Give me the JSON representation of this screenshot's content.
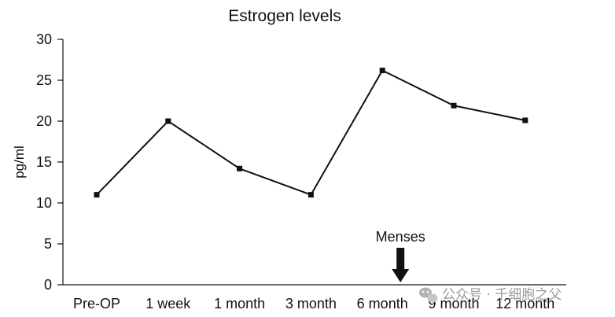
{
  "chart_data": {
    "type": "line",
    "title": "Estrogen levels",
    "xlabel": "",
    "ylabel": "pg/ml",
    "categories": [
      "Pre-OP",
      "1 week",
      "1 month",
      "3 month",
      "6 month",
      "9 month",
      "12 month"
    ],
    "series": [
      {
        "values": [
          11,
          20,
          14.2,
          11,
          26.2,
          21.9,
          20.1
        ]
      }
    ],
    "ylim": [
      0,
      30
    ],
    "yticks": [
      0,
      5,
      10,
      15,
      20,
      25,
      30
    ],
    "grid": false,
    "legend": "none",
    "annotation": {
      "text": "Menses",
      "category": "6 month",
      "arrow": "down"
    }
  },
  "watermark": {
    "text": "公众号 · 千细胞之父",
    "icon": "wechat-icon"
  },
  "colors": {
    "line": "#111111",
    "marker": "#111111",
    "axis": "#111111",
    "watermark": "#9a9a9a"
  }
}
